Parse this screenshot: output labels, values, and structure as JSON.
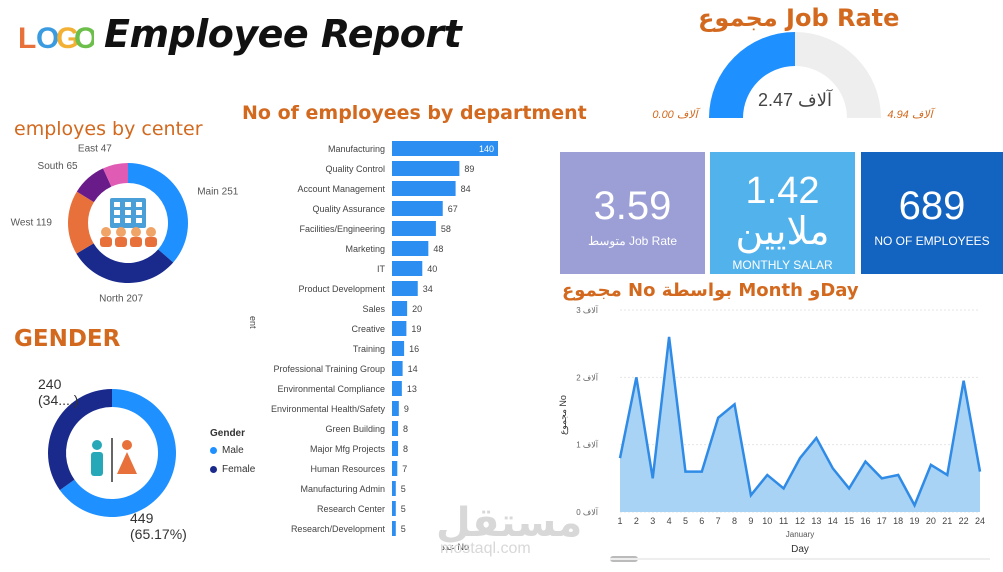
{
  "header": {
    "logo_text": "LOGO",
    "title": "Employee Report"
  },
  "center_section": {
    "title": "employes by center"
  },
  "gender_section": {
    "title": "GENDER",
    "female_label_1": "240",
    "female_label_2": "(34....)",
    "male_label_1": "449",
    "male_label_2": "(65.17%)",
    "legend_title": "Gender",
    "legend_male": "Male",
    "legend_female": "Female"
  },
  "dept_section": {
    "title": "No of employees by department",
    "xlabel": "عدد No",
    "ylabel": "ent"
  },
  "jobrate_section": {
    "title": "مجموع Job Rate",
    "center_value": "آلاف 2.47",
    "min_label": "آلاف 0.00",
    "max_label": "آلاف 4.94"
  },
  "cards": [
    {
      "value": "3.59",
      "label": "متوسط Job Rate"
    },
    {
      "value": "1.42",
      "value2": "ملايين",
      "label": "MONTHLY SALAR"
    },
    {
      "value": "689",
      "label": "NO OF EMPLOYEES"
    }
  ],
  "line_section": {
    "title": "مجموع No بواسطة Month وDay",
    "ylabel": "مجموع No",
    "xlabel": "Day",
    "month_label": "January"
  },
  "watermark": {
    "text": "مستقل",
    "sub": "mostaql.com"
  },
  "colors": {
    "accent_orange": "#d2691e",
    "blue_main": "#1e90ff",
    "navy": "#1a2a8c",
    "bar_blue": "#2b8ef0",
    "line_blue": "#2f8be6",
    "area_fill": "#a9d3f5"
  },
  "icons": {
    "center": "building-people-icon",
    "gender": "male-female-icon"
  },
  "chart_data": [
    {
      "type": "pie",
      "title": "employes by center",
      "categories": [
        "Main",
        "North",
        "West",
        "South",
        "East"
      ],
      "values": [
        251,
        207,
        119,
        65,
        47
      ],
      "colors": [
        "#1e90ff",
        "#1a2a8c",
        "#e8703a",
        "#6a1b8a",
        "#e05cb4"
      ]
    },
    {
      "type": "pie",
      "title": "GENDER",
      "categories": [
        "Male",
        "Female"
      ],
      "values": [
        449,
        240
      ],
      "colors": [
        "#1e90ff",
        "#1a2a8c"
      ]
    },
    {
      "type": "bar",
      "orientation": "horizontal",
      "title": "No of employees by department",
      "categories": [
        "Manufacturing",
        "Quality Control",
        "Account Management",
        "Quality Assurance",
        "Facilities/Engineering",
        "Marketing",
        "IT",
        "Product Development",
        "Sales",
        "Creative",
        "Training",
        "Professional Training Group",
        "Environmental Compliance",
        "Environmental Health/Safety",
        "Green Building",
        "Major Mfg Projects",
        "Human Resources",
        "Manufacturing Admin",
        "Research Center",
        "Research/Development"
      ],
      "values": [
        140,
        89,
        84,
        67,
        58,
        48,
        40,
        34,
        20,
        19,
        16,
        14,
        13,
        9,
        8,
        8,
        7,
        5,
        5,
        5
      ],
      "xlim": [
        0,
        140
      ]
    },
    {
      "type": "gauge",
      "title": "مجموع Job Rate",
      "value": 2.47,
      "min": 0,
      "max": 4.94
    },
    {
      "type": "area",
      "title": "مجموع No بواسطة Month وDay",
      "x": [
        1,
        2,
        3,
        4,
        5,
        6,
        7,
        8,
        9,
        10,
        11,
        12,
        13,
        14,
        15,
        16,
        17,
        18,
        19,
        20,
        21,
        22,
        24
      ],
      "values": [
        0.8,
        2.0,
        0.5,
        2.6,
        0.6,
        0.6,
        1.4,
        1.6,
        0.25,
        0.55,
        0.35,
        0.8,
        1.1,
        0.65,
        0.35,
        0.75,
        0.5,
        0.55,
        0.1,
        0.7,
        0.55,
        1.95,
        0.6
      ],
      "xticks": [
        "1",
        "2",
        "3",
        "4",
        "5",
        "6",
        "7",
        "8",
        "9",
        "10",
        "11",
        "12",
        "13",
        "14",
        "15",
        "16",
        "17",
        "18",
        "19",
        "20",
        "21",
        "22",
        "24"
      ],
      "yticks": [
        "آلاف 0",
        "آلاف 1",
        "آلاف 2",
        "آلاف 3"
      ],
      "ylim": [
        0,
        3
      ],
      "xlabel": "Day",
      "ylabel": "مجموع No"
    }
  ]
}
